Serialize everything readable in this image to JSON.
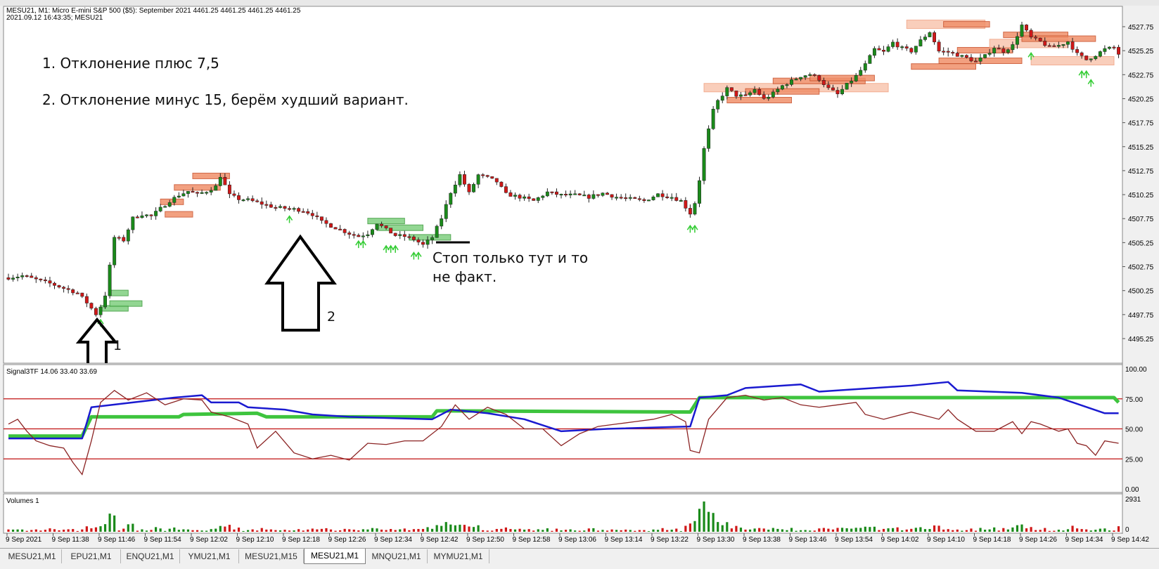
{
  "window": {
    "header_line1": "MESU21, M1:  Micro E-mini S&P 500 ($5): September 2021   4461.25 4461.25 4461.25 4461.25",
    "header_line2": "2021.09.12 16:43:35; MESU21"
  },
  "annotations": {
    "note1": "1. Отклонение плюс 7,5",
    "note2": "2. Отклонение минус 15, берём худший вариант.",
    "stop_line1": "Стоп только тут и то",
    "stop_line2": "не факт.",
    "arrow1_label": "1",
    "arrow2_label": "2"
  },
  "price_axis": {
    "ticks": [
      "4527.75",
      "4525.25",
      "4522.75",
      "4520.25",
      "4517.75",
      "4515.25",
      "4512.75",
      "4510.25",
      "4507.75",
      "4505.25",
      "4502.75",
      "4500.25",
      "4497.75",
      "4495.25"
    ],
    "tick_values": [
      4527.75,
      4525.25,
      4522.75,
      4520.25,
      4517.75,
      4515.25,
      4512.75,
      4510.25,
      4507.75,
      4505.25,
      4502.75,
      4500.25,
      4497.75,
      4495.25
    ]
  },
  "indicator": {
    "label": "Signal3TF 14.06 33.40 33.69",
    "axis_ticks": [
      "100.00",
      "75.00",
      "50.00",
      "25.00",
      "0.00"
    ],
    "levels": [
      75,
      50,
      25
    ],
    "colors": {
      "green": "#3ec43e",
      "blue": "#1a1ad0",
      "brown": "#8b2323",
      "levels": "#c01010"
    }
  },
  "volumes": {
    "label": "Volumes 1",
    "axis_ticks": [
      "2931",
      "0"
    ]
  },
  "time_axis": [
    "9 Sep 2021",
    "9 Sep 11:38",
    "9 Sep 11:46",
    "9 Sep 11:54",
    "9 Sep 12:02",
    "9 Sep 12:10",
    "9 Sep 12:18",
    "9 Sep 12:26",
    "9 Sep 12:34",
    "9 Sep 12:42",
    "9 Sep 12:50",
    "9 Sep 12:58",
    "9 Sep 13:06",
    "9 Sep 13:14",
    "9 Sep 13:22",
    "9 Sep 13:30",
    "9 Sep 13:38",
    "9 Sep 13:46",
    "9 Sep 13:54",
    "9 Sep 14:02",
    "9 Sep 14:10",
    "9 Sep 14:18",
    "9 Sep 14:26",
    "9 Sep 14:34",
    "9 Sep 14:42"
  ],
  "tabs": [
    {
      "label": "MESU21,M1",
      "active": false
    },
    {
      "label": "EPU21,M1",
      "active": false
    },
    {
      "label": "ENQU21,M1",
      "active": false
    },
    {
      "label": "YMU21,M1",
      "active": false
    },
    {
      "label": "MESU21,M15",
      "active": false
    },
    {
      "label": "MESU21,M1",
      "active": true
    },
    {
      "label": "MNQU21,M1",
      "active": false
    },
    {
      "label": "MYMU21,M1",
      "active": false
    }
  ],
  "chart_data": {
    "type": "candlestick",
    "colors": {
      "up": "#1a8a1a",
      "down": "#d01818",
      "signal_arrow": "#33cc33"
    },
    "close_path": [
      [
        0,
        4501.6
      ],
      [
        3,
        4501.8
      ],
      [
        6,
        4501.4
      ],
      [
        9,
        4501.0
      ],
      [
        12,
        4500.5
      ],
      [
        15,
        4500.0
      ],
      [
        17,
        4499.0
      ],
      [
        19,
        4497.8
      ],
      [
        20,
        4498.6
      ],
      [
        21,
        4499.8
      ],
      [
        23,
        4505.8
      ],
      [
        25,
        4505.5
      ],
      [
        27,
        4507.8
      ],
      [
        29,
        4508.2
      ],
      [
        31,
        4508.0
      ],
      [
        33,
        4508.8
      ],
      [
        35,
        4509.6
      ],
      [
        37,
        4510.2
      ],
      [
        39,
        4510.6
      ],
      [
        41,
        4510.3
      ],
      [
        43,
        4510.6
      ],
      [
        45,
        4511.1
      ],
      [
        46,
        4512.2
      ],
      [
        48,
        4510.2
      ],
      [
        50,
        4509.8
      ],
      [
        52,
        4509.7
      ],
      [
        55,
        4509.3
      ],
      [
        58,
        4508.9
      ],
      [
        61,
        4508.8
      ],
      [
        64,
        4508.6
      ],
      [
        66,
        4508.2
      ],
      [
        68,
        4507.4
      ],
      [
        70,
        4507.0
      ],
      [
        72,
        4506.6
      ],
      [
        74,
        4506.2
      ],
      [
        76,
        4505.9
      ],
      [
        78,
        4506.2
      ],
      [
        80,
        4507.3
      ],
      [
        82,
        4506.6
      ],
      [
        84,
        4506.0
      ],
      [
        86,
        4505.9
      ],
      [
        88,
        4505.6
      ],
      [
        90,
        4505.0
      ],
      [
        92,
        4505.8
      ],
      [
        94,
        4507.8
      ],
      [
        96,
        4510.5
      ],
      [
        98,
        4512.3
      ],
      [
        100,
        4510.4
      ],
      [
        102,
        4512.3
      ],
      [
        104,
        4512.0
      ],
      [
        106,
        4511.6
      ],
      [
        108,
        4510.3
      ],
      [
        111,
        4510.0
      ],
      [
        114,
        4509.6
      ],
      [
        117,
        4510.5
      ],
      [
        120,
        4510.2
      ],
      [
        123,
        4510.2
      ],
      [
        126,
        4510.0
      ],
      [
        129,
        4510.4
      ],
      [
        132,
        4510.0
      ],
      [
        135,
        4509.8
      ],
      [
        138,
        4509.6
      ],
      [
        141,
        4510.3
      ],
      [
        144,
        4510.0
      ],
      [
        146,
        4509.6
      ],
      [
        148,
        4508.3
      ],
      [
        149,
        4509.4
      ],
      [
        150,
        4511.8
      ],
      [
        151,
        4515.0
      ],
      [
        152,
        4517.0
      ],
      [
        153,
        4519.0
      ],
      [
        154,
        4520.0
      ],
      [
        156,
        4521.3
      ],
      [
        158,
        4520.6
      ],
      [
        160,
        4520.5
      ],
      [
        162,
        4521.2
      ],
      [
        164,
        4520.2
      ],
      [
        166,
        4520.8
      ],
      [
        168,
        4521.6
      ],
      [
        170,
        4522.1
      ],
      [
        172,
        4522.6
      ],
      [
        174,
        4522.8
      ],
      [
        176,
        4522.3
      ],
      [
        178,
        4521.3
      ],
      [
        180,
        4520.7
      ],
      [
        182,
        4521.7
      ],
      [
        184,
        4522.6
      ],
      [
        186,
        4523.8
      ],
      [
        188,
        4525.4
      ],
      [
        190,
        4525.1
      ],
      [
        192,
        4526.1
      ],
      [
        194,
        4525.5
      ],
      [
        196,
        4525.2
      ],
      [
        198,
        4526.3
      ],
      [
        200,
        4527.2
      ],
      [
        202,
        4525.2
      ],
      [
        204,
        4525.1
      ],
      [
        206,
        4524.8
      ],
      [
        208,
        4524.5
      ],
      [
        210,
        4524.1
      ],
      [
        212,
        4524.7
      ],
      [
        214,
        4525.6
      ],
      [
        216,
        4525.2
      ],
      [
        218,
        4525.8
      ],
      [
        220,
        4527.9
      ],
      [
        222,
        4526.6
      ],
      [
        224,
        4526.2
      ],
      [
        226,
        4525.6
      ],
      [
        228,
        4525.8
      ],
      [
        230,
        4526.2
      ],
      [
        232,
        4524.9
      ],
      [
        234,
        4524.3
      ],
      [
        236,
        4524.8
      ],
      [
        238,
        4525.4
      ],
      [
        240,
        4525.6
      ],
      [
        241,
        4524.9
      ]
    ],
    "zones": [
      {
        "i0": 22,
        "i1": 26,
        "price": 4500.0,
        "kind": "green"
      },
      {
        "i0": 20,
        "i1": 26,
        "price": 4498.4,
        "kind": "green"
      },
      {
        "i0": 22,
        "i1": 29,
        "price": 4498.9,
        "kind": "green"
      },
      {
        "i0": 33,
        "i1": 38,
        "price": 4509.5,
        "kind": "red"
      },
      {
        "i0": 34,
        "i1": 40,
        "price": 4508.2,
        "kind": "red"
      },
      {
        "i0": 36,
        "i1": 46,
        "price": 4511.0,
        "kind": "red"
      },
      {
        "i0": 40,
        "i1": 48,
        "price": 4512.2,
        "kind": "red"
      },
      {
        "i0": 78,
        "i1": 86,
        "price": 4507.5,
        "kind": "green"
      },
      {
        "i0": 80,
        "i1": 90,
        "price": 4506.8,
        "kind": "green"
      },
      {
        "i0": 87,
        "i1": 96,
        "price": 4505.8,
        "kind": "green"
      },
      {
        "i0": 151,
        "i1": 191,
        "price": 4521.4,
        "kind": "lightred"
      },
      {
        "i0": 156,
        "i1": 170,
        "price": 4520.1,
        "kind": "red"
      },
      {
        "i0": 160,
        "i1": 176,
        "price": 4521.0,
        "kind": "red"
      },
      {
        "i0": 166,
        "i1": 186,
        "price": 4522.1,
        "kind": "red"
      },
      {
        "i0": 174,
        "i1": 188,
        "price": 4522.4,
        "kind": "red"
      },
      {
        "i0": 195,
        "i1": 212,
        "price": 4528.0,
        "kind": "lightred"
      },
      {
        "i0": 203,
        "i1": 213,
        "price": 4528.0,
        "kind": "red"
      },
      {
        "i0": 196,
        "i1": 210,
        "price": 4523.6,
        "kind": "red"
      },
      {
        "i0": 206,
        "i1": 218,
        "price": 4525.3,
        "kind": "red"
      },
      {
        "i0": 213,
        "i1": 230,
        "price": 4526.0,
        "kind": "lightred"
      },
      {
        "i0": 216,
        "i1": 230,
        "price": 4526.9,
        "kind": "red"
      },
      {
        "i0": 220,
        "i1": 236,
        "price": 4526.5,
        "kind": "red"
      },
      {
        "i0": 222,
        "i1": 240,
        "price": 4524.2,
        "kind": "lightred"
      },
      {
        "i0": 202,
        "i1": 220,
        "price": 4524.2,
        "kind": "red"
      }
    ],
    "signal_arrows": [
      {
        "i": 20,
        "price": 4497.0
      },
      {
        "i": 61,
        "price": 4507.8
      },
      {
        "i": 76,
        "price": 4505.2
      },
      {
        "i": 77,
        "price": 4505.2
      },
      {
        "i": 82,
        "price": 4504.7
      },
      {
        "i": 83,
        "price": 4504.7
      },
      {
        "i": 84,
        "price": 4504.7
      },
      {
        "i": 88,
        "price": 4504.0
      },
      {
        "i": 89,
        "price": 4504.0
      },
      {
        "i": 148,
        "price": 4506.8
      },
      {
        "i": 149,
        "price": 4506.8
      },
      {
        "i": 222,
        "price": 4524.8
      },
      {
        "i": 233,
        "price": 4522.9
      },
      {
        "i": 234,
        "price": 4522.9
      },
      {
        "i": 235,
        "price": 4522.0
      }
    ],
    "indicator_green": [
      [
        0,
        44
      ],
      [
        16,
        44
      ],
      [
        18,
        60
      ],
      [
        37,
        60
      ],
      [
        38,
        62
      ],
      [
        54,
        63
      ],
      [
        56,
        60
      ],
      [
        92,
        60
      ],
      [
        93,
        65
      ],
      [
        148,
        64
      ],
      [
        150,
        76
      ],
      [
        240,
        76
      ],
      [
        241,
        72
      ]
    ],
    "indicator_blue": [
      [
        0,
        42
      ],
      [
        16,
        42
      ],
      [
        18,
        68
      ],
      [
        36,
        76
      ],
      [
        42,
        78
      ],
      [
        44,
        72
      ],
      [
        50,
        72
      ],
      [
        52,
        68
      ],
      [
        60,
        66
      ],
      [
        66,
        62
      ],
      [
        74,
        60
      ],
      [
        92,
        58
      ],
      [
        96,
        66
      ],
      [
        104,
        63
      ],
      [
        112,
        58
      ],
      [
        120,
        48
      ],
      [
        130,
        50
      ],
      [
        148,
        52
      ],
      [
        150,
        76
      ],
      [
        156,
        78
      ],
      [
        160,
        84
      ],
      [
        172,
        87
      ],
      [
        176,
        81
      ],
      [
        196,
        86
      ],
      [
        204,
        89
      ],
      [
        206,
        82
      ],
      [
        220,
        80
      ],
      [
        228,
        76
      ],
      [
        238,
        63
      ],
      [
        241,
        63
      ]
    ],
    "indicator_brown": [
      [
        0,
        54
      ],
      [
        2,
        58
      ],
      [
        4,
        48
      ],
      [
        6,
        40
      ],
      [
        9,
        36
      ],
      [
        12,
        34
      ],
      [
        14,
        22
      ],
      [
        16,
        12
      ],
      [
        18,
        40
      ],
      [
        20,
        72
      ],
      [
        23,
        82
      ],
      [
        26,
        74
      ],
      [
        30,
        80
      ],
      [
        34,
        70
      ],
      [
        38,
        75
      ],
      [
        42,
        74
      ],
      [
        44,
        64
      ],
      [
        48,
        60
      ],
      [
        52,
        54
      ],
      [
        54,
        34
      ],
      [
        58,
        48
      ],
      [
        62,
        30
      ],
      [
        66,
        25
      ],
      [
        70,
        28
      ],
      [
        74,
        24
      ],
      [
        78,
        38
      ],
      [
        82,
        37
      ],
      [
        86,
        40
      ],
      [
        90,
        40
      ],
      [
        94,
        52
      ],
      [
        97,
        70
      ],
      [
        100,
        58
      ],
      [
        104,
        68
      ],
      [
        108,
        62
      ],
      [
        112,
        50
      ],
      [
        116,
        50
      ],
      [
        120,
        36
      ],
      [
        124,
        46
      ],
      [
        128,
        52
      ],
      [
        132,
        54
      ],
      [
        136,
        56
      ],
      [
        140,
        58
      ],
      [
        144,
        62
      ],
      [
        147,
        56
      ],
      [
        148,
        32
      ],
      [
        150,
        30
      ],
      [
        152,
        58
      ],
      [
        156,
        76
      ],
      [
        160,
        78
      ],
      [
        164,
        74
      ],
      [
        168,
        76
      ],
      [
        172,
        70
      ],
      [
        176,
        68
      ],
      [
        180,
        70
      ],
      [
        184,
        72
      ],
      [
        186,
        62
      ],
      [
        190,
        58
      ],
      [
        196,
        64
      ],
      [
        202,
        58
      ],
      [
        204,
        66
      ],
      [
        206,
        58
      ],
      [
        210,
        48
      ],
      [
        214,
        48
      ],
      [
        218,
        56
      ],
      [
        220,
        46
      ],
      [
        222,
        56
      ],
      [
        224,
        54
      ],
      [
        228,
        48
      ],
      [
        230,
        50
      ],
      [
        232,
        38
      ],
      [
        234,
        36
      ],
      [
        236,
        28
      ],
      [
        238,
        40
      ],
      [
        241,
        38
      ]
    ],
    "volume_bars": [],
    "volume_scale": 2931
  }
}
